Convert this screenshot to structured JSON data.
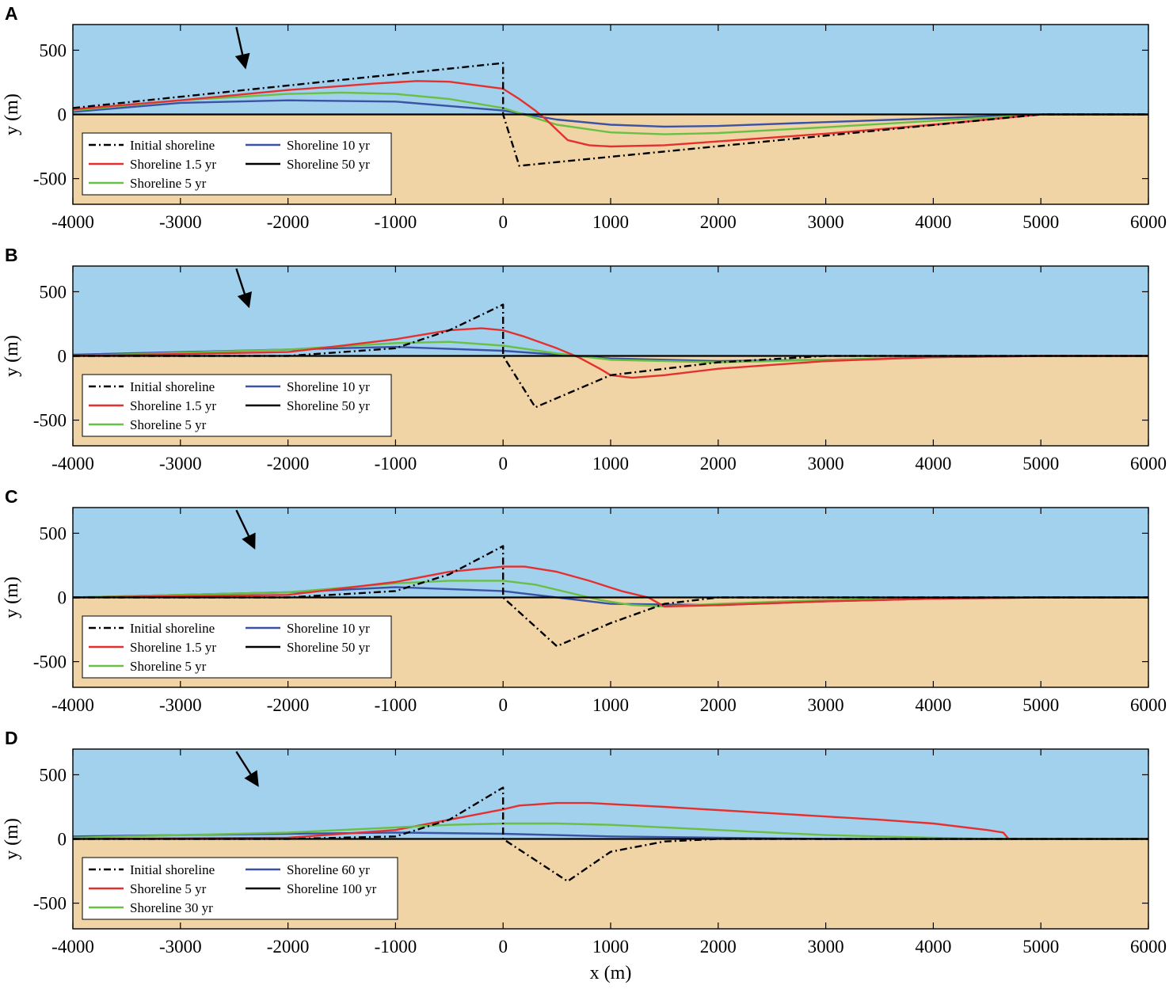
{
  "chart_data": [
    {
      "type": "line",
      "panel": "A",
      "xlabel": "",
      "ylabel": "y (m)",
      "xlim": [
        -4000,
        6000
      ],
      "ylim": [
        -700,
        700
      ],
      "xticks": [
        "-4000",
        "-3000",
        "-2000",
        "-1000",
        "0",
        "1000",
        "2000",
        "3000",
        "4000",
        "5000",
        "6000"
      ],
      "yticks": [
        "500",
        "0",
        "-500"
      ],
      "background": {
        "sea": "#a2d1ee",
        "land": "#f1d4a6"
      },
      "arrow": {
        "x": [
          -2480,
          -2400
        ],
        "y": [
          680,
          380
        ]
      },
      "legend": [
        "Initial shoreline",
        "Shoreline 10 yr",
        "Shoreline 1.5 yr",
        "Shoreline 50 yr",
        "Shoreline 5 yr"
      ],
      "series": [
        {
          "name": "Initial shoreline",
          "color": "#000000",
          "dash": "dashdot",
          "x": [
            -4000,
            0,
            0,
            150,
            5000,
            6000
          ],
          "y": [
            50,
            400,
            0,
            -400,
            0,
            0
          ]
        },
        {
          "name": "Shoreline 1.5 yr",
          "color": "#e53030",
          "x": [
            -4000,
            -3000,
            -2000,
            -1200,
            -800,
            -500,
            0,
            150,
            300,
            400,
            500,
            600,
            800,
            1000,
            1500,
            2000,
            3000,
            4000,
            5000,
            6000
          ],
          "y": [
            40,
            110,
            190,
            240,
            260,
            255,
            200,
            120,
            30,
            -40,
            -120,
            -200,
            -240,
            -250,
            -240,
            -210,
            -150,
            -80,
            0,
            0
          ]
        },
        {
          "name": "Shoreline 5 yr",
          "color": "#6abf45",
          "x": [
            -4000,
            -3000,
            -2000,
            -1500,
            -1000,
            -500,
            0,
            500,
            1000,
            1500,
            2000,
            3000,
            4000,
            5000,
            6000
          ],
          "y": [
            30,
            110,
            160,
            170,
            160,
            120,
            50,
            -80,
            -140,
            -155,
            -145,
            -100,
            -50,
            0,
            0
          ]
        },
        {
          "name": "Shoreline 10 yr",
          "color": "#3b53a4",
          "x": [
            -4000,
            -3000,
            -2000,
            -1000,
            0,
            500,
            1000,
            1500,
            2000,
            3000,
            4000,
            5000,
            6000
          ],
          "y": [
            20,
            90,
            110,
            100,
            30,
            -40,
            -80,
            -95,
            -90,
            -60,
            -30,
            0,
            0
          ]
        },
        {
          "name": "Shoreline 50 yr",
          "color": "#000000",
          "x": [
            -4000,
            6000
          ],
          "y": [
            0,
            0
          ]
        }
      ]
    },
    {
      "type": "line",
      "panel": "B",
      "xlabel": "",
      "ylabel": "y (m)",
      "xlim": [
        -4000,
        6000
      ],
      "ylim": [
        -700,
        700
      ],
      "xticks": [
        "-4000",
        "-3000",
        "-2000",
        "-1000",
        "0",
        "1000",
        "2000",
        "3000",
        "4000",
        "5000",
        "6000"
      ],
      "yticks": [
        "500",
        "0",
        "-500"
      ],
      "background": {
        "sea": "#a2d1ee",
        "land": "#f1d4a6"
      },
      "arrow": {
        "x": [
          -2480,
          -2370
        ],
        "y": [
          680,
          400
        ]
      },
      "legend": [
        "Initial shoreline",
        "Shoreline 10 yr",
        "Shoreline 1.5 yr",
        "Shoreline 50 yr",
        "Shoreline 5 yr"
      ],
      "series": [
        {
          "name": "Initial shoreline",
          "color": "#000000",
          "dash": "dashdot",
          "x": [
            -4000,
            -2000,
            -1000,
            -500,
            0,
            0,
            300,
            1000,
            2000,
            3000,
            4000,
            5000,
            6000
          ],
          "y": [
            0,
            0,
            60,
            200,
            400,
            0,
            -400,
            -150,
            -50,
            0,
            0,
            0,
            0
          ]
        },
        {
          "name": "Shoreline 1.5 yr",
          "color": "#e53030",
          "x": [
            -4000,
            -2000,
            -1000,
            -500,
            -200,
            0,
            200,
            500,
            700,
            900,
            1000,
            1200,
            1500,
            2000,
            3000,
            4000,
            5000,
            6000
          ],
          "y": [
            0,
            30,
            130,
            200,
            215,
            200,
            150,
            60,
            -10,
            -100,
            -150,
            -170,
            -150,
            -100,
            -40,
            -10,
            0,
            0
          ]
        },
        {
          "name": "Shoreline 5 yr",
          "color": "#6abf45",
          "x": [
            -4000,
            -2000,
            -1000,
            -500,
            0,
            500,
            1000,
            2000,
            3000,
            4000,
            5000,
            6000
          ],
          "y": [
            0,
            50,
            100,
            110,
            80,
            20,
            -30,
            -50,
            -30,
            -10,
            0,
            0
          ]
        },
        {
          "name": "Shoreline 10 yr",
          "color": "#3b53a4",
          "x": [
            -4000,
            -2000,
            -1000,
            0,
            1000,
            2000,
            3000,
            4000,
            5000,
            6000
          ],
          "y": [
            10,
            50,
            70,
            40,
            -20,
            -40,
            -30,
            -10,
            0,
            0
          ]
        },
        {
          "name": "Shoreline 50 yr",
          "color": "#000000",
          "x": [
            -4000,
            6000
          ],
          "y": [
            0,
            0
          ]
        }
      ]
    },
    {
      "type": "line",
      "panel": "C",
      "xlabel": "",
      "ylabel": "y (m)",
      "xlim": [
        -4000,
        6000
      ],
      "ylim": [
        -700,
        700
      ],
      "xticks": [
        "-4000",
        "-3000",
        "-2000",
        "-1000",
        "0",
        "1000",
        "2000",
        "3000",
        "4000",
        "5000",
        "6000"
      ],
      "yticks": [
        "500",
        "0",
        "-500"
      ],
      "background": {
        "sea": "#a2d1ee",
        "land": "#f1d4a6"
      },
      "arrow": {
        "x": [
          -2480,
          -2320
        ],
        "y": [
          680,
          400
        ]
      },
      "legend": [
        "Initial shoreline",
        "Shoreline 10 yr",
        "Shoreline 1.5 yr",
        "Shoreline 50 yr",
        "Shoreline 5 yr"
      ],
      "series": [
        {
          "name": "Initial shoreline",
          "color": "#000000",
          "dash": "dashdot",
          "x": [
            -4000,
            -2000,
            -1000,
            -500,
            0,
            0,
            500,
            1000,
            1500,
            2000,
            3000,
            4000,
            5000,
            6000
          ],
          "y": [
            0,
            0,
            50,
            180,
            400,
            0,
            -380,
            -200,
            -50,
            0,
            0,
            0,
            0,
            0
          ]
        },
        {
          "name": "Shoreline 1.5 yr",
          "color": "#e53030",
          "x": [
            -4000,
            -2000,
            -1000,
            -500,
            0,
            200,
            500,
            800,
            1100,
            1350,
            1500,
            2000,
            3000,
            4000,
            5000,
            6000
          ],
          "y": [
            0,
            20,
            120,
            200,
            240,
            240,
            200,
            130,
            50,
            0,
            -70,
            -60,
            -30,
            -10,
            0,
            0
          ]
        },
        {
          "name": "Shoreline 5 yr",
          "color": "#6abf45",
          "x": [
            -4000,
            -2000,
            -1000,
            -500,
            0,
            300,
            600,
            900,
            1200,
            1500,
            2000,
            3000,
            4000,
            5000,
            6000
          ],
          "y": [
            0,
            40,
            110,
            130,
            130,
            100,
            40,
            -20,
            -60,
            -70,
            -50,
            -20,
            -10,
            0,
            0
          ]
        },
        {
          "name": "Shoreline 10 yr",
          "color": "#3b53a4",
          "x": [
            -4000,
            -2000,
            -1000,
            0,
            1000,
            2000,
            3000,
            4000,
            5000,
            6000
          ],
          "y": [
            0,
            40,
            80,
            50,
            -50,
            -60,
            -30,
            -10,
            0,
            0
          ]
        },
        {
          "name": "Shoreline 50 yr",
          "color": "#000000",
          "x": [
            -4000,
            6000
          ],
          "y": [
            0,
            0
          ]
        }
      ]
    },
    {
      "type": "line",
      "panel": "D",
      "xlabel": "x (m)",
      "ylabel": "y (m)",
      "xlim": [
        -4000,
        6000
      ],
      "ylim": [
        -700,
        700
      ],
      "xticks": [
        "-4000",
        "-3000",
        "-2000",
        "-1000",
        "0",
        "1000",
        "2000",
        "3000",
        "4000",
        "5000",
        "6000"
      ],
      "yticks": [
        "500",
        "0",
        "-500"
      ],
      "background": {
        "sea": "#a2d1ee",
        "land": "#f1d4a6"
      },
      "arrow": {
        "x": [
          -2480,
          -2290
        ],
        "y": [
          680,
          430
        ]
      },
      "legend": [
        "Initial shoreline",
        "Shoreline 60 yr",
        "Shoreline 5 yr",
        "Shoreline 100 yr",
        "Shoreline 30 yr"
      ],
      "series": [
        {
          "name": "Initial shoreline",
          "color": "#000000",
          "dash": "dashdot",
          "x": [
            -4000,
            -2000,
            -1000,
            -500,
            0,
            0,
            600,
            1000,
            1500,
            2000,
            3000,
            4000,
            5000,
            6000
          ],
          "y": [
            0,
            0,
            20,
            150,
            400,
            0,
            -330,
            -100,
            -20,
            0,
            0,
            0,
            0,
            0
          ]
        },
        {
          "name": "Shoreline 5 yr",
          "color": "#e53030",
          "x": [
            -4000,
            -2000,
            -1000,
            -500,
            0,
            150,
            500,
            800,
            1500,
            2500,
            3500,
            4000,
            4500,
            4650,
            4700,
            5000,
            6000
          ],
          "y": [
            0,
            10,
            70,
            150,
            230,
            260,
            280,
            280,
            250,
            200,
            150,
            120,
            70,
            50,
            0,
            0,
            0
          ]
        },
        {
          "name": "Shoreline 30 yr",
          "color": "#6abf45",
          "x": [
            -4000,
            -2000,
            -1000,
            -500,
            0,
            500,
            1000,
            1500,
            2000,
            2500,
            3000,
            3500,
            4000,
            4500,
            5000,
            6000
          ],
          "y": [
            10,
            50,
            90,
            110,
            120,
            120,
            110,
            90,
            70,
            50,
            30,
            20,
            10,
            0,
            0,
            0
          ]
        },
        {
          "name": "Shoreline 60 yr",
          "color": "#3b53a4",
          "x": [
            -4000,
            -2000,
            -1000,
            0,
            1000,
            2000,
            3000,
            4000,
            5000,
            6000
          ],
          "y": [
            20,
            40,
            50,
            40,
            20,
            10,
            0,
            0,
            0,
            0
          ]
        },
        {
          "name": "Shoreline 100 yr",
          "color": "#000000",
          "x": [
            -4000,
            6000
          ],
          "y": [
            0,
            0
          ]
        }
      ]
    }
  ]
}
